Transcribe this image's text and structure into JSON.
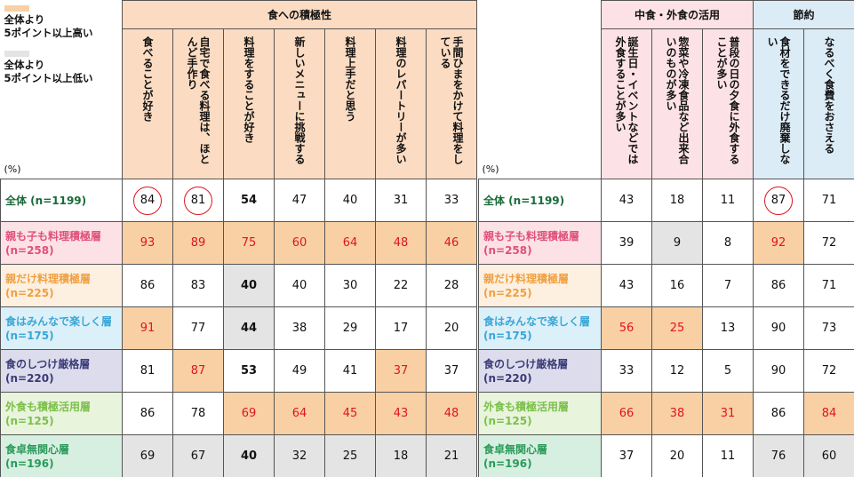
{
  "legend": {
    "high_text": "全体より\n5ポイント以上高い",
    "low_text": "全体より\n5ポイント以上低い",
    "high_color": "#f9d0a4",
    "low_color": "#e4e4e4",
    "unit": "(%)"
  },
  "colors": {
    "header_orange": "#fbdcc2",
    "header_pink": "#fce2e6",
    "header_blue": "#dcecf7",
    "highlight_text": "#e0141e"
  },
  "left": {
    "group": "食への積極性",
    "columns": [
      "食べることが好き",
      "自宅で食べる料理は、ほとんど手作り",
      "料理をすることが好き",
      "新しいメニューに挑戦する",
      "料理上手だと思う",
      "料理のレパートリーが多い",
      "手間ひまをかけて料理をしている"
    ]
  },
  "right": {
    "groups": [
      {
        "label": "中食・外食の活用",
        "span": 3
      },
      {
        "label": "節約",
        "span": 2
      }
    ],
    "columns": [
      "誕生日・イベントなどでは外食することが多い",
      "惣菜や冷凍食品など出来合いのものが多い",
      "普段の日の夕食に外食することが多い",
      "食材をできるだけ廃棄しない",
      "なるべく食費をおさえる"
    ]
  },
  "rows": [
    {
      "label": "全体 (n=1199)",
      "label_color": "#1a6b3a",
      "bg": "#ffffff",
      "left": [
        {
          "v": "84",
          "s": "circle"
        },
        {
          "v": "81",
          "s": "circle"
        },
        {
          "v": "54",
          "s": "bold"
        },
        {
          "v": "47",
          "s": ""
        },
        {
          "v": "40",
          "s": ""
        },
        {
          "v": "31",
          "s": ""
        },
        {
          "v": "33",
          "s": ""
        }
      ],
      "right": [
        {
          "v": "43",
          "s": ""
        },
        {
          "v": "18",
          "s": ""
        },
        {
          "v": "11",
          "s": ""
        },
        {
          "v": "87",
          "s": "circle"
        },
        {
          "v": "71",
          "s": ""
        }
      ]
    },
    {
      "label": "親も子も料理積極層\n(n=258)",
      "label_color": "#e0507a",
      "bg": "#fce2e6",
      "left": [
        {
          "v": "93",
          "s": "hi"
        },
        {
          "v": "89",
          "s": "hi"
        },
        {
          "v": "75",
          "s": "hi"
        },
        {
          "v": "60",
          "s": "hi"
        },
        {
          "v": "64",
          "s": "hi"
        },
        {
          "v": "48",
          "s": "hi"
        },
        {
          "v": "46",
          "s": "hi"
        }
      ],
      "right": [
        {
          "v": "39",
          "s": ""
        },
        {
          "v": "9",
          "s": "lo"
        },
        {
          "v": "8",
          "s": ""
        },
        {
          "v": "92",
          "s": "hi"
        },
        {
          "v": "72",
          "s": ""
        }
      ]
    },
    {
      "label": "親だけ料理積極層\n(n=225)",
      "label_color": "#f0a040",
      "bg": "#fdf0e0",
      "left": [
        {
          "v": "86",
          "s": ""
        },
        {
          "v": "83",
          "s": ""
        },
        {
          "v": "40",
          "s": "lo-bold"
        },
        {
          "v": "40",
          "s": ""
        },
        {
          "v": "30",
          "s": ""
        },
        {
          "v": "22",
          "s": ""
        },
        {
          "v": "28",
          "s": ""
        }
      ],
      "right": [
        {
          "v": "43",
          "s": ""
        },
        {
          "v": "16",
          "s": ""
        },
        {
          "v": "7",
          "s": ""
        },
        {
          "v": "86",
          "s": ""
        },
        {
          "v": "71",
          "s": ""
        }
      ]
    },
    {
      "label": "食はみんなで楽しく層\n(n=175)",
      "label_color": "#3aa6d6",
      "bg": "#dcf0f9",
      "left": [
        {
          "v": "91",
          "s": "hi"
        },
        {
          "v": "77",
          "s": ""
        },
        {
          "v": "44",
          "s": "lo-bold"
        },
        {
          "v": "38",
          "s": ""
        },
        {
          "v": "29",
          "s": ""
        },
        {
          "v": "17",
          "s": ""
        },
        {
          "v": "20",
          "s": ""
        }
      ],
      "right": [
        {
          "v": "56",
          "s": "hi"
        },
        {
          "v": "25",
          "s": "hi"
        },
        {
          "v": "13",
          "s": ""
        },
        {
          "v": "90",
          "s": ""
        },
        {
          "v": "73",
          "s": ""
        }
      ]
    },
    {
      "label": "食のしつけ厳格層\n(n=220)",
      "label_color": "#3a3a78",
      "bg": "#dcdcec",
      "left": [
        {
          "v": "81",
          "s": ""
        },
        {
          "v": "87",
          "s": "hi"
        },
        {
          "v": "53",
          "s": "bold"
        },
        {
          "v": "49",
          "s": ""
        },
        {
          "v": "41",
          "s": ""
        },
        {
          "v": "37",
          "s": "hi"
        },
        {
          "v": "37",
          "s": ""
        }
      ],
      "right": [
        {
          "v": "33",
          "s": ""
        },
        {
          "v": "12",
          "s": ""
        },
        {
          "v": "5",
          "s": ""
        },
        {
          "v": "90",
          "s": ""
        },
        {
          "v": "72",
          "s": ""
        }
      ]
    },
    {
      "label": "外食も積極活用層\n(n=125)",
      "label_color": "#7cc04a",
      "bg": "#e8f4dc",
      "left": [
        {
          "v": "86",
          "s": ""
        },
        {
          "v": "78",
          "s": ""
        },
        {
          "v": "69",
          "s": "hi"
        },
        {
          "v": "64",
          "s": "hi"
        },
        {
          "v": "45",
          "s": "hi"
        },
        {
          "v": "43",
          "s": "hi"
        },
        {
          "v": "48",
          "s": "hi"
        }
      ],
      "right": [
        {
          "v": "66",
          "s": "hi"
        },
        {
          "v": "38",
          "s": "hi"
        },
        {
          "v": "31",
          "s": "hi"
        },
        {
          "v": "86",
          "s": ""
        },
        {
          "v": "84",
          "s": "hi"
        }
      ]
    },
    {
      "label": "食卓無関心層\n(n=196)",
      "label_color": "#2a9a5a",
      "bg": "#d6efe0",
      "left": [
        {
          "v": "69",
          "s": "lo"
        },
        {
          "v": "67",
          "s": "lo"
        },
        {
          "v": "40",
          "s": "lo-bold"
        },
        {
          "v": "32",
          "s": "lo"
        },
        {
          "v": "25",
          "s": "lo"
        },
        {
          "v": "18",
          "s": "lo"
        },
        {
          "v": "21",
          "s": "lo"
        }
      ],
      "right": [
        {
          "v": "37",
          "s": ""
        },
        {
          "v": "20",
          "s": ""
        },
        {
          "v": "11",
          "s": ""
        },
        {
          "v": "76",
          "s": "lo"
        },
        {
          "v": "60",
          "s": "lo"
        }
      ]
    }
  ]
}
